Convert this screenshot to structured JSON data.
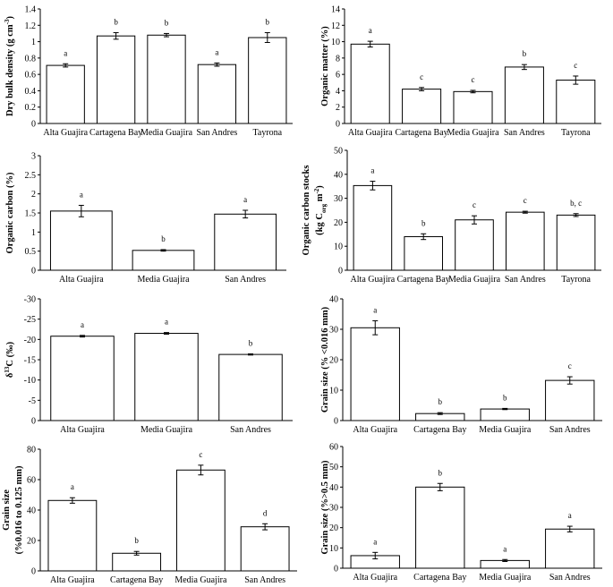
{
  "chart_data": [
    {
      "id": "dry-bulk-density",
      "type": "bar",
      "ylabel": "Dry bulk density (g cm",
      "ylabel_sup": "-3",
      "ylabel_tail": ")",
      "categories": [
        "Alta Guajira",
        "Cartagena Bay",
        "Media Guajira",
        "San Andres",
        "Tayrona"
      ],
      "values": [
        0.71,
        1.07,
        1.08,
        0.72,
        1.05
      ],
      "errors": [
        0.02,
        0.04,
        0.02,
        0.02,
        0.06
      ],
      "significance": [
        "a",
        "b",
        "b",
        "a",
        "b"
      ],
      "ylim": [
        0,
        1.4
      ],
      "yticks": [
        "0",
        "0.2",
        "0.4",
        "0.6",
        "0.8",
        "1",
        "1.2",
        "1.4"
      ]
    },
    {
      "id": "organic-matter",
      "type": "bar",
      "ylabel": "Organic matter (%)",
      "categories": [
        "Alta Guajira",
        "Cartagena Bay",
        "Media Guajira",
        "San Andres",
        "Tayrona"
      ],
      "values": [
        9.7,
        4.2,
        3.9,
        6.9,
        5.3
      ],
      "errors": [
        0.35,
        0.2,
        0.15,
        0.3,
        0.5
      ],
      "significance": [
        "a",
        "c",
        "c",
        "b",
        "c"
      ],
      "ylim": [
        0,
        14
      ],
      "yticks": [
        "0",
        "2",
        "4",
        "6",
        "8",
        "10",
        "12",
        "14"
      ]
    },
    {
      "id": "organic-carbon",
      "type": "bar",
      "ylabel": "Organic carbon (%)",
      "categories": [
        "Alta Guajira",
        "Media Guajira",
        "San Andres"
      ],
      "values": [
        1.55,
        0.52,
        1.47
      ],
      "errors": [
        0.15,
        0.02,
        0.1
      ],
      "significance": [
        "a",
        "b",
        "a"
      ],
      "ylim": [
        0,
        3
      ],
      "yticks": [
        "0",
        "0.5",
        "1",
        "1.5",
        "2",
        "2.5",
        "3"
      ]
    },
    {
      "id": "organic-carbon-stocks",
      "type": "bar",
      "ylabel": "Organic carbon stocks",
      "ylabel2": "(kg C",
      "ylabel2_sub": "org",
      "ylabel2_mid": " m",
      "ylabel2_sup": "-2",
      "ylabel2_tail": ")",
      "categories": [
        "Alta Guajira",
        "Cartagena Bay",
        "Media Guajira",
        "San Andres",
        "Tayrona"
      ],
      "values": [
        35.3,
        14.0,
        21.0,
        24.2,
        23.0
      ],
      "errors": [
        1.8,
        1.2,
        1.7,
        0.4,
        0.6
      ],
      "significance": [
        "a",
        "b",
        "c",
        "c",
        "b, c"
      ],
      "ylim": [
        0,
        50
      ],
      "yticks": [
        "0",
        "10",
        "20",
        "30",
        "40",
        "50"
      ]
    },
    {
      "id": "delta-13c",
      "type": "bar",
      "ylabel": "δ",
      "ylabel_sup": "13",
      "ylabel_tail": "C (‰)",
      "categories": [
        "Alta Guajira",
        "Media Guajira",
        "San Andres"
      ],
      "values": [
        -20.8,
        -21.5,
        -16.3
      ],
      "errors": [
        0.2,
        0.2,
        0.15
      ],
      "significance": [
        "a",
        "a",
        "b"
      ],
      "ylim": [
        0,
        -30
      ],
      "yticks": [
        "0",
        "-5",
        "-10",
        "-15",
        "-20",
        "-25",
        "-30"
      ]
    },
    {
      "id": "grain-size-fine",
      "type": "bar",
      "ylabel": "Grain size (% <0.016 mm)",
      "categories": [
        "Alta Guajira",
        "Cartagena Bay",
        "Media Guajira",
        "San Andres"
      ],
      "values": [
        30.5,
        2.3,
        3.8,
        13.2
      ],
      "errors": [
        2.3,
        0.3,
        0.2,
        1.2
      ],
      "significance": [
        "a",
        "b",
        "b",
        "c"
      ],
      "ylim": [
        0,
        40
      ],
      "yticks": [
        "0",
        "10",
        "20",
        "30",
        "40"
      ]
    },
    {
      "id": "grain-size-medium",
      "type": "bar",
      "ylabel": "Grain size",
      "ylabel2": "(%0.016 to 0.125 mm)",
      "categories": [
        "Alta Guajira",
        "Cartagena Bay",
        "Media Guajira",
        "San Andres"
      ],
      "values": [
        46.3,
        11.6,
        66.3,
        29.0
      ],
      "errors": [
        1.8,
        1.2,
        3.2,
        2.0
      ],
      "significance": [
        "a",
        "b",
        "c",
        "d"
      ],
      "ylim": [
        0,
        80
      ],
      "yticks": [
        "0",
        "20",
        "40",
        "60",
        "80"
      ]
    },
    {
      "id": "grain-size-coarse",
      "type": "bar",
      "ylabel": "Grain size (%>0.5 mm)",
      "categories": [
        "Alta Guajira",
        "Cartagena Bay",
        "Media Guajira",
        "San Andres"
      ],
      "values": [
        6.2,
        40.0,
        3.8,
        19.3
      ],
      "errors": [
        1.6,
        1.8,
        0.5,
        1.4
      ],
      "significance": [
        "a",
        "b",
        "a",
        "a"
      ],
      "ylim": [
        0,
        60
      ],
      "yticks": [
        "0",
        "10",
        "20",
        "30",
        "40",
        "50",
        "60"
      ]
    }
  ]
}
